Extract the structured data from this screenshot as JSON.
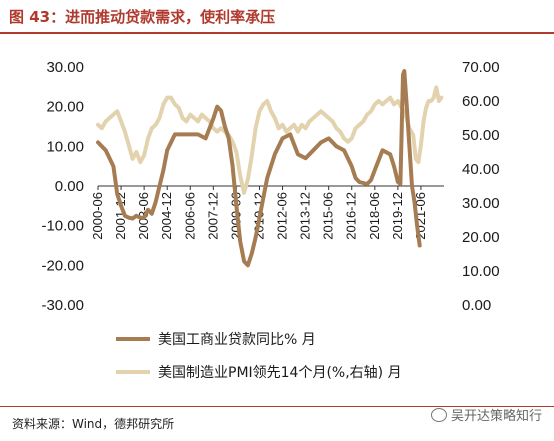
{
  "figure": {
    "title": "图 43：进而推动贷款需求，使利率承压",
    "source": "资料来源：Wind，德邦研究所",
    "watermark": "吴开达策略知行",
    "colors": {
      "title": "#b03a2e",
      "series1": "#a67c52",
      "series2": "#e2d3ae"
    }
  },
  "chart_data": {
    "type": "line",
    "x_tick_labels": [
      "2000-06",
      "2001-12",
      "2003-06",
      "2004-12",
      "2006-06",
      "2007-12",
      "2009-06",
      "2010-12",
      "2012-06",
      "2013-12",
      "2015-06",
      "2016-12",
      "2018-06",
      "2019-12",
      "2021-06"
    ],
    "x_range": [
      "2000-06",
      "2022-12"
    ],
    "y_left": {
      "ticks": [
        "30.00",
        "20.00",
        "10.00",
        "0.00",
        "-10.00",
        "-20.00",
        "-30.00"
      ],
      "range": [
        -30,
        30
      ]
    },
    "y_right": {
      "ticks": [
        "70.00",
        "60.00",
        "50.00",
        "40.00",
        "30.00",
        "20.00",
        "10.00",
        "0.00"
      ],
      "range": [
        0,
        70
      ]
    },
    "grid": false,
    "legend_position": "bottom",
    "series": [
      {
        "name": "美国工商业贷款同比% 月",
        "axis": "left",
        "color": "#a67c52",
        "points": [
          [
            "2000-06",
            11
          ],
          [
            "2000-12",
            9
          ],
          [
            "2001-06",
            5
          ],
          [
            "2001-09",
            -2
          ],
          [
            "2001-12",
            -5
          ],
          [
            "2002-03",
            -7.5
          ],
          [
            "2002-06",
            -8
          ],
          [
            "2002-09",
            -8.2
          ],
          [
            "2002-12",
            -7.5
          ],
          [
            "2003-03",
            -8
          ],
          [
            "2003-06",
            -8
          ],
          [
            "2003-09",
            -6
          ],
          [
            "2003-12",
            -7
          ],
          [
            "2004-03",
            -4
          ],
          [
            "2004-06",
            0
          ],
          [
            "2004-09",
            4
          ],
          [
            "2004-12",
            9
          ],
          [
            "2005-06",
            13
          ],
          [
            "2005-12",
            13
          ],
          [
            "2006-06",
            13
          ],
          [
            "2006-12",
            13
          ],
          [
            "2007-06",
            12
          ],
          [
            "2007-12",
            17
          ],
          [
            "2008-03",
            20
          ],
          [
            "2008-06",
            19
          ],
          [
            "2008-09",
            15
          ],
          [
            "2008-12",
            12
          ],
          [
            "2009-03",
            5
          ],
          [
            "2009-06",
            -5
          ],
          [
            "2009-09",
            -14
          ],
          [
            "2009-12",
            -19
          ],
          [
            "2010-03",
            -20
          ],
          [
            "2010-06",
            -17
          ],
          [
            "2010-09",
            -13
          ],
          [
            "2010-12",
            -8
          ],
          [
            "2011-03",
            -3
          ],
          [
            "2011-06",
            2
          ],
          [
            "2011-12",
            8
          ],
          [
            "2012-06",
            12
          ],
          [
            "2012-12",
            13
          ],
          [
            "2013-06",
            8
          ],
          [
            "2013-12",
            7
          ],
          [
            "2014-06",
            9
          ],
          [
            "2014-12",
            11
          ],
          [
            "2015-06",
            12
          ],
          [
            "2015-12",
            10
          ],
          [
            "2016-06",
            9
          ],
          [
            "2016-12",
            5
          ],
          [
            "2017-03",
            2
          ],
          [
            "2017-06",
            1
          ],
          [
            "2017-12",
            0.5
          ],
          [
            "2018-03",
            1.5
          ],
          [
            "2018-06",
            4
          ],
          [
            "2018-12",
            9
          ],
          [
            "2019-06",
            8
          ],
          [
            "2019-09",
            5
          ],
          [
            "2019-12",
            1
          ],
          [
            "2020-02",
            0.5
          ],
          [
            "2020-04",
            28
          ],
          [
            "2020-05",
            29
          ],
          [
            "2020-07",
            20
          ],
          [
            "2020-09",
            10
          ],
          [
            "2020-11",
            0
          ],
          [
            "2021-01",
            -4
          ],
          [
            "2021-03",
            -10
          ],
          [
            "2021-05",
            -15
          ]
        ]
      },
      {
        "name": "美国制造业PMI领先14个月(%,右轴) 月",
        "axis": "right",
        "color": "#e2d3ae",
        "points": [
          [
            "2000-06",
            53
          ],
          [
            "2000-09",
            52
          ],
          [
            "2000-12",
            54
          ],
          [
            "2001-03",
            55
          ],
          [
            "2001-06",
            56
          ],
          [
            "2001-09",
            57
          ],
          [
            "2001-12",
            54
          ],
          [
            "2002-03",
            51
          ],
          [
            "2002-06",
            47
          ],
          [
            "2002-09",
            43
          ],
          [
            "2002-12",
            45
          ],
          [
            "2003-03",
            42
          ],
          [
            "2003-06",
            44
          ],
          [
            "2003-09",
            49
          ],
          [
            "2003-12",
            52
          ],
          [
            "2004-03",
            53
          ],
          [
            "2004-06",
            55
          ],
          [
            "2004-09",
            59
          ],
          [
            "2004-12",
            61
          ],
          [
            "2005-03",
            61
          ],
          [
            "2005-06",
            59
          ],
          [
            "2005-09",
            58
          ],
          [
            "2005-12",
            55
          ],
          [
            "2006-03",
            54
          ],
          [
            "2006-06",
            56
          ],
          [
            "2006-09",
            55
          ],
          [
            "2006-12",
            54
          ],
          [
            "2007-03",
            56
          ],
          [
            "2007-06",
            55
          ],
          [
            "2007-09",
            54
          ],
          [
            "2007-12",
            52
          ],
          [
            "2008-03",
            51
          ],
          [
            "2008-06",
            52
          ],
          [
            "2008-09",
            51
          ],
          [
            "2008-12",
            50
          ],
          [
            "2009-03",
            48
          ],
          [
            "2009-06",
            45
          ],
          [
            "2009-09",
            38
          ],
          [
            "2009-12",
            33
          ],
          [
            "2010-03",
            37
          ],
          [
            "2010-06",
            44
          ],
          [
            "2010-09",
            52
          ],
          [
            "2010-12",
            57
          ],
          [
            "2011-03",
            59
          ],
          [
            "2011-06",
            60
          ],
          [
            "2011-09",
            57
          ],
          [
            "2011-12",
            55
          ],
          [
            "2012-03",
            52
          ],
          [
            "2012-06",
            53
          ],
          [
            "2012-09",
            51
          ],
          [
            "2012-12",
            52
          ],
          [
            "2013-03",
            53
          ],
          [
            "2013-06",
            51
          ],
          [
            "2013-09",
            53
          ],
          [
            "2013-12",
            52
          ],
          [
            "2014-03",
            54
          ],
          [
            "2014-06",
            55
          ],
          [
            "2014-09",
            56
          ],
          [
            "2014-12",
            57
          ],
          [
            "2015-03",
            56
          ],
          [
            "2015-06",
            55
          ],
          [
            "2015-09",
            54
          ],
          [
            "2015-12",
            52
          ],
          [
            "2016-03",
            51
          ],
          [
            "2016-06",
            49
          ],
          [
            "2016-09",
            48
          ],
          [
            "2016-12",
            49
          ],
          [
            "2017-03",
            52
          ],
          [
            "2017-06",
            53
          ],
          [
            "2017-09",
            54
          ],
          [
            "2017-12",
            56
          ],
          [
            "2018-03",
            57
          ],
          [
            "2018-06",
            59
          ],
          [
            "2018-09",
            60
          ],
          [
            "2018-12",
            59
          ],
          [
            "2019-03",
            60
          ],
          [
            "2019-06",
            61
          ],
          [
            "2019-09",
            59
          ],
          [
            "2019-12",
            60
          ],
          [
            "2020-03",
            58
          ],
          [
            "2020-06",
            56
          ],
          [
            "2020-09",
            52
          ],
          [
            "2020-12",
            50
          ],
          [
            "2021-02",
            43
          ],
          [
            "2021-04",
            42
          ],
          [
            "2021-06",
            47
          ],
          [
            "2021-08",
            54
          ],
          [
            "2021-10",
            58
          ],
          [
            "2021-12",
            60
          ],
          [
            "2022-02",
            60
          ],
          [
            "2022-04",
            61
          ],
          [
            "2022-06",
            64
          ],
          [
            "2022-08",
            60
          ],
          [
            "2022-10",
            61
          ]
        ]
      }
    ]
  }
}
